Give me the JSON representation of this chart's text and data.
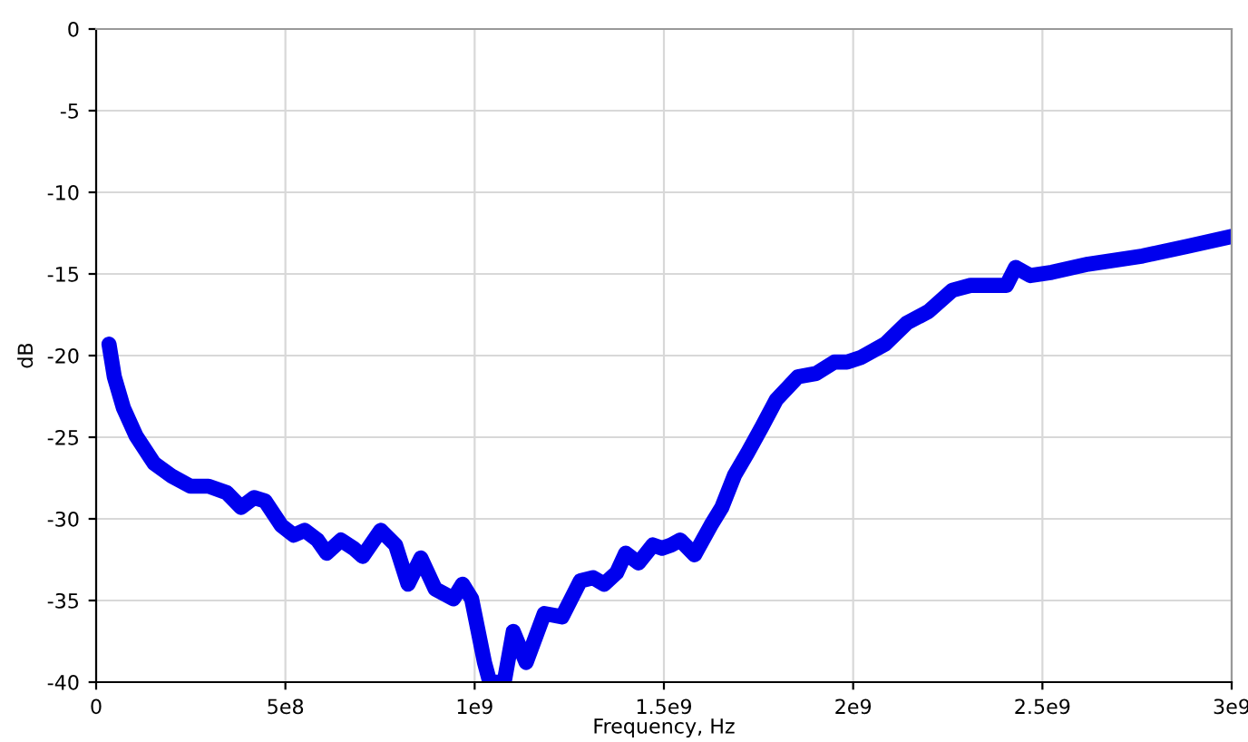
{
  "chart_data": {
    "type": "line",
    "xlabel": "Frequency, Hz",
    "ylabel": "dB",
    "x": [
      34000000.0,
      48000000.0,
      72000000.0,
      105000000.0,
      153000000.0,
      201000000.0,
      249000000.0,
      297000000.0,
      345000000.0,
      383000000.0,
      417000000.0,
      446000000.0,
      489000000.0,
      522000000.0,
      551000000.0,
      585000000.0,
      609000000.0,
      647000000.0,
      680000000.0,
      704000000.0,
      752000000.0,
      791000000.0,
      824000000.0,
      858000000.0,
      896000000.0,
      944000000.0,
      968000000.0,
      992000000.0,
      1026000000.0,
      1040000000.0,
      1078000000.0,
      1102000000.0,
      1136000000.0,
      1184000000.0,
      1231000000.0,
      1279000000.0,
      1313000000.0,
      1342000000.0,
      1375000000.0,
      1399000000.0,
      1433000000.0,
      1471000000.0,
      1495000000.0,
      1519000000.0,
      1543000000.0,
      1581000000.0,
      1624000000.0,
      1653000000.0,
      1687000000.0,
      1720000000.0,
      1758000000.0,
      1797000000.0,
      1854000000.0,
      1902000000.0,
      1950000000.0,
      1984000000.0,
      2022000000.0,
      2084000000.0,
      2142000000.0,
      2199000000.0,
      2262000000.0,
      2310000000.0,
      2357000000.0,
      2405000000.0,
      2429000000.0,
      2468000000.0,
      2525000000.0,
      2621000000.0,
      2765000000.0,
      2885000000.0,
      3000000000.0
    ],
    "series": [
      {
        "color": "#0000ee",
        "values": [
          -19.3,
          -21.3,
          -23.2,
          -24.9,
          -26.6,
          -27.4,
          -28,
          -28,
          -28.4,
          -29.3,
          -28.7,
          -28.9,
          -30.4,
          -31,
          -30.7,
          -31.3,
          -32.1,
          -31.3,
          -31.8,
          -32.3,
          -30.7,
          -31.6,
          -34,
          -32.4,
          -34.3,
          -34.9,
          -34,
          -34.9,
          -38.8,
          -40,
          -40,
          -36.9,
          -38.8,
          -35.8,
          -36,
          -33.8,
          -33.6,
          -34,
          -33.3,
          -32.1,
          -32.7,
          -31.6,
          -31.8,
          -31.6,
          -31.3,
          -32.2,
          -30.4,
          -29.3,
          -27.3,
          -26,
          -24.4,
          -22.7,
          -21.3,
          -21.1,
          -20.4,
          -20.4,
          -20.1,
          -19.3,
          -18,
          -17.3,
          -16,
          -15.7,
          -15.7,
          -15.7,
          -14.6,
          -15.1,
          -14.9,
          -14.4,
          -13.9,
          -13.3,
          -12.7
        ]
      }
    ],
    "xlim": [
      0,
      3000000000.0
    ],
    "xticks": [
      0,
      {
        "value": 500000000.0,
        "label": "5e8"
      },
      {
        "value": 1000000000.0,
        "label": "1e9"
      },
      {
        "value": 1500000000.0,
        "label": "1.5e9"
      },
      {
        "value": 2000000000.0,
        "label": "2e9"
      },
      {
        "value": 2500000000.0,
        "label": "2.5e9"
      },
      {
        "value": 3000000000.0,
        "label": "3e9"
      }
    ],
    "ylim": [
      -40,
      0
    ],
    "yticks": [
      -40,
      -35,
      -30,
      -25,
      -20,
      -15,
      -10,
      -5,
      0
    ],
    "grid": true,
    "line_style": "solid"
  }
}
